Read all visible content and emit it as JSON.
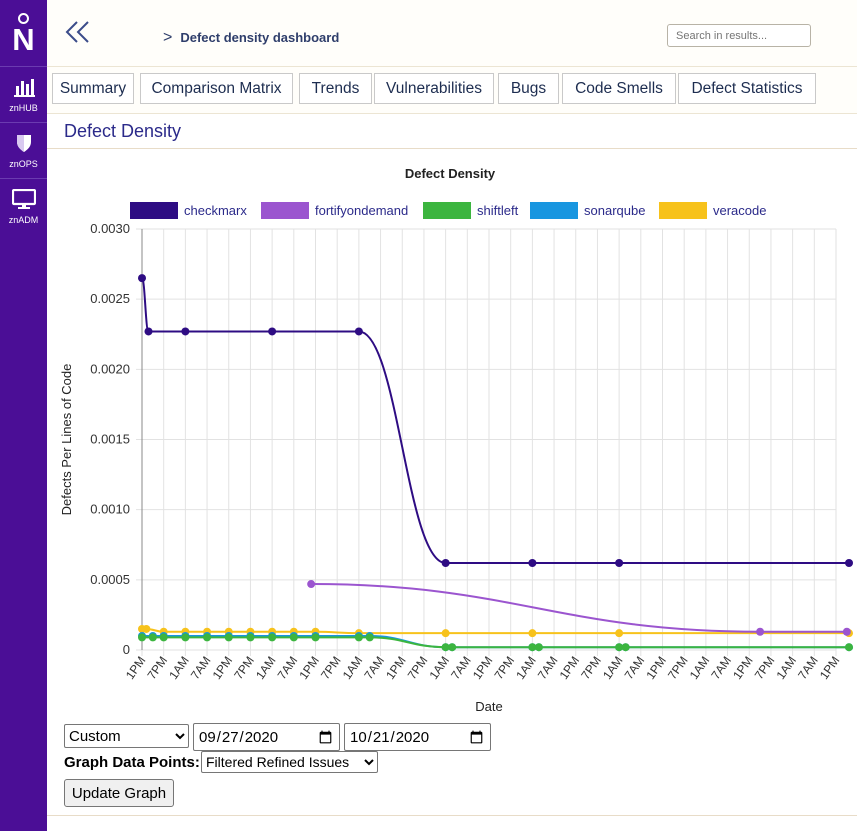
{
  "app": {
    "logo_letter": "N"
  },
  "sidebar": {
    "items": [
      {
        "label": "znHUB",
        "icon": "bar-chart-icon"
      },
      {
        "label": "znOPS",
        "icon": "shield-icon"
      },
      {
        "label": "znADM",
        "icon": "monitor-icon"
      }
    ]
  },
  "header": {
    "breadcrumb_sep": ">",
    "breadcrumb": "Defect density dashboard",
    "search_placeholder": "Search in results..."
  },
  "tabs": [
    "Summary",
    "Comparison Matrix",
    "Trends",
    "Vulnerabilities",
    "Bugs",
    "Code Smells",
    "Defect Statistics"
  ],
  "page_title": "Defect Density",
  "controls": {
    "range_selected": "Custom",
    "start_date": "2020-09-27",
    "end_date": "2020-10-21",
    "data_points_label": "Graph Data Points:",
    "data_points_selected": "Filtered Refined Issues",
    "update_label": "Update Graph"
  },
  "colors": {
    "sidebar": "#4b0e96",
    "checkmarx": "#2e0c83",
    "fortifyondemand": "#9b55cf",
    "shiftleft": "#3cb53f",
    "sonarqube": "#1896e0",
    "veracode": "#f7c21b"
  },
  "chart_data": {
    "type": "line",
    "title": "Defect Density",
    "xlabel": "Date",
    "ylabel": "Defects Per Lines of Code",
    "ylim": [
      0,
      0.003
    ],
    "yticks": [
      "0.0030",
      "0.0025",
      "0.0020",
      "0.0015",
      "0.0010",
      "0.0005",
      "0"
    ],
    "x_ticks": [
      "1PM",
      "7PM",
      "1AM",
      "7AM",
      "1PM",
      "7PM",
      "1AM",
      "7AM",
      "1PM",
      "7PM",
      "1AM",
      "7AM",
      "1PM",
      "7PM",
      "1AM",
      "7AM",
      "1PM",
      "7PM",
      "1AM",
      "7AM",
      "1PM",
      "7PM",
      "1AM",
      "7AM",
      "1PM",
      "7PM",
      "1AM",
      "7AM",
      "1PM",
      "7PM",
      "1AM",
      "7AM",
      "1PM"
    ],
    "x_unit": "tick",
    "legend_position": "top",
    "grid": true,
    "series": [
      {
        "name": "checkmarx",
        "x": [
          0,
          0.3,
          2,
          6,
          10,
          14,
          18,
          22,
          32.6
        ],
        "values": [
          0.00265,
          0.00227,
          0.00227,
          0.00227,
          0.00227,
          0.00062,
          0.00062,
          0.00062,
          0.00062
        ]
      },
      {
        "name": "fortifyondemand",
        "x": [
          7.8,
          28.5,
          32.5
        ],
        "values": [
          0.00047,
          0.00013,
          0.00013
        ]
      },
      {
        "name": "shiftleft",
        "x": [
          0,
          0.5,
          1,
          2,
          3,
          4,
          5,
          6,
          7,
          8,
          10,
          10.5,
          14,
          14.3,
          18,
          18.3,
          22,
          22.3,
          32.6
        ],
        "values": [
          9e-05,
          9e-05,
          9e-05,
          9e-05,
          9e-05,
          9e-05,
          9e-05,
          9e-05,
          9e-05,
          9e-05,
          9e-05,
          9e-05,
          2e-05,
          2e-05,
          2e-05,
          2e-05,
          2e-05,
          2e-05,
          2e-05
        ]
      },
      {
        "name": "sonarqube",
        "x": [
          0,
          0.5,
          1,
          2,
          3,
          4,
          5,
          6,
          7,
          8,
          10,
          10.5,
          14,
          14.3,
          18,
          18.3,
          22,
          22.3,
          32.6
        ],
        "values": [
          0.0001,
          0.0001,
          0.0001,
          0.0001,
          0.0001,
          0.0001,
          0.0001,
          0.0001,
          0.0001,
          0.0001,
          0.0001,
          0.0001,
          2e-05,
          2e-05,
          2e-05,
          2e-05,
          2e-05,
          2e-05,
          2e-05
        ]
      },
      {
        "name": "veracode",
        "x": [
          0,
          0.2,
          1,
          2,
          3,
          4,
          5,
          6,
          7,
          8,
          10,
          14,
          18,
          22,
          32.6
        ],
        "values": [
          0.00015,
          0.00015,
          0.00013,
          0.00013,
          0.00013,
          0.00013,
          0.00013,
          0.00013,
          0.00013,
          0.00013,
          0.00012,
          0.00012,
          0.00012,
          0.00012,
          0.00012
        ]
      }
    ]
  }
}
